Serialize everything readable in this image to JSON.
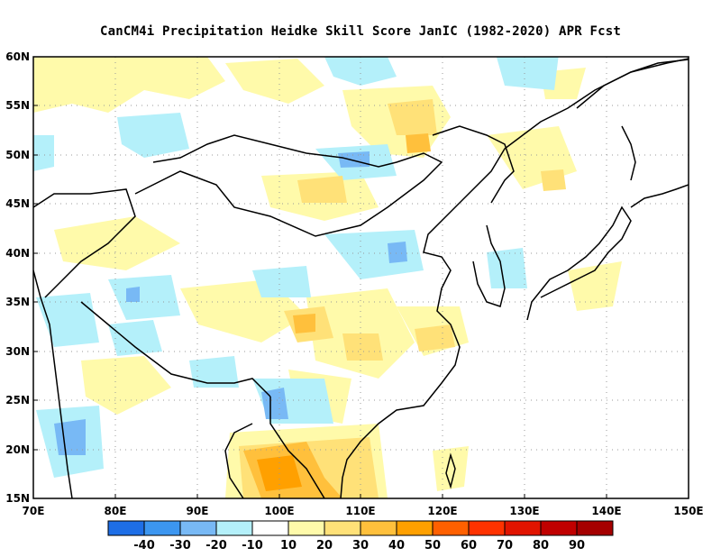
{
  "title": "CanCM4i  Precipitation Heidke Skill Score JanIC (1982-2020) APR Fcst",
  "map": {
    "lon_ticks": [
      "70E",
      "80E",
      "90E",
      "100E",
      "110E",
      "120E",
      "130E",
      "140E",
      "150E"
    ],
    "lat_ticks": [
      "15N",
      "20N",
      "25N",
      "30N",
      "35N",
      "40N",
      "45N",
      "50N",
      "55N",
      "60N"
    ],
    "lon_range": [
      70,
      150
    ],
    "lat_range": [
      15,
      60
    ],
    "grid": "dotted"
  },
  "colorbar": {
    "colors": [
      "#1e6ee6",
      "#3c96f0",
      "#78b9f5",
      "#b4f0fa",
      "#ffffff",
      "#fffaaa",
      "#ffe178",
      "#ffc03c",
      "#ffa000",
      "#ff6000",
      "#ff3200",
      "#e11400",
      "#c00000",
      "#a50000"
    ],
    "labels": [
      "-40",
      "-30",
      "-20",
      "-10",
      "10",
      "20",
      "30",
      "40",
      "50",
      "60",
      "70",
      "80",
      "90"
    ]
  }
}
